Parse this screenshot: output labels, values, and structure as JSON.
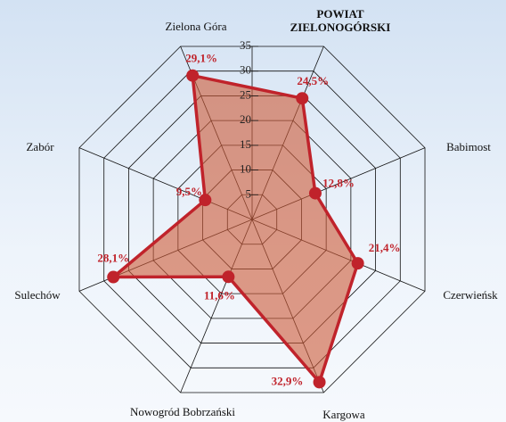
{
  "chart_data": {
    "type": "radar",
    "categories": [
      "Zielona Góra",
      "POWIAT ZIELONOGÓRSKI",
      "Babimost",
      "Czerwieńsk",
      "Kargowa",
      "Nowogród Bobrzański",
      "Sulechów",
      "Zabór"
    ],
    "values": [
      29.1,
      24.5,
      12.8,
      21.4,
      32.9,
      11.6,
      28.1,
      9.5
    ],
    "value_labels": [
      "29,1%",
      "24,5%",
      "12,8%",
      "21,4%",
      "32,9%",
      "11,6%",
      "28,1%",
      "9,5%"
    ],
    "color": "#c0232b",
    "ylim": [
      0,
      35
    ],
    "yticks": [
      5,
      10,
      15,
      20,
      25,
      30,
      35
    ],
    "grid": true
  }
}
